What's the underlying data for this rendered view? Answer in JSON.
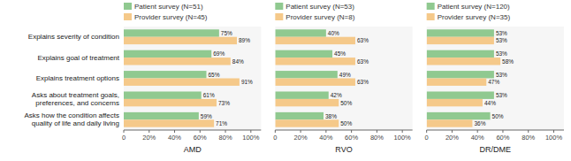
{
  "chart_data": [
    {
      "type": "bar",
      "orientation": "horizontal",
      "x_label": "AMD",
      "categories": [
        "Explains severity of condition",
        "Explains goal of treatment",
        "Explains treatment options",
        "Asks about treatment goals,\npreferences, and concerns",
        "Asks how the condition affects\nquality of life and daily living"
      ],
      "series": [
        {
          "name": "Patient survey (N=51)",
          "color": "#90c990",
          "values": [
            75,
            69,
            65,
            61,
            59
          ],
          "value_labels": [
            "75%",
            "69%",
            "65%",
            "61%",
            "59%"
          ]
        },
        {
          "name": "Provider survey (N=45)",
          "color": "#f5c98a",
          "values": [
            89,
            84,
            91,
            73,
            71
          ],
          "value_labels": [
            "89%",
            "84%",
            "91%",
            "73%",
            "71%"
          ]
        }
      ],
      "xlim": [
        0,
        108
      ],
      "xticks": [
        0,
        {
          "value": 20,
          "label": "20%"
        },
        {
          "value": 40,
          "label": "40%"
        },
        {
          "value": 60,
          "label": "60%"
        },
        {
          "value": 80,
          "label": "80%"
        },
        {
          "value": 100,
          "label": "100%"
        }
      ],
      "data_labels": true,
      "legend": "top",
      "grid": false
    },
    {
      "type": "bar",
      "orientation": "horizontal",
      "x_label": "RVO",
      "categories": [
        null,
        null,
        null,
        null,
        null
      ],
      "series": [
        {
          "name": "Patient survey (N=53)",
          "color": "#90c990",
          "values": [
            40,
            45,
            49,
            42,
            38
          ],
          "value_labels": [
            "40%",
            "45%",
            "49%",
            "42%",
            "38%"
          ]
        },
        {
          "name": "Provider survey (N=8)",
          "color": "#f5c98a",
          "values": [
            63,
            63,
            63,
            50,
            50
          ],
          "value_labels": [
            "63%",
            "63%",
            "63%",
            "50%",
            "50%"
          ]
        }
      ],
      "xlim": [
        0,
        108
      ],
      "xticks": [
        0,
        {
          "value": 20,
          "label": "20%"
        },
        {
          "value": 40,
          "label": "40%"
        },
        {
          "value": 60,
          "label": "60%"
        },
        {
          "value": 80,
          "label": "80%"
        },
        {
          "value": 100,
          "label": "100%"
        }
      ],
      "data_labels": true,
      "legend": "top",
      "grid": false
    },
    {
      "type": "bar",
      "orientation": "horizontal",
      "x_label": "DR/DME",
      "categories": [
        null,
        null,
        null,
        null,
        null
      ],
      "series": [
        {
          "name": "Patient survey (N=120)",
          "color": "#90c990",
          "values": [
            53,
            53,
            53,
            53,
            50
          ],
          "value_labels": [
            "53%",
            "53%",
            "53%",
            "53%",
            "50%"
          ]
        },
        {
          "name": "Provider survey (N=35)",
          "color": "#f5c98a",
          "values": [
            53,
            58,
            47,
            44,
            36
          ],
          "value_labels": [
            "53%",
            "58%",
            "47%",
            "44%",
            "36%"
          ]
        }
      ],
      "xlim": [
        0,
        108
      ],
      "xticks": [
        0,
        {
          "value": 20,
          "label": "20%"
        },
        {
          "value": 40,
          "label": "40%"
        },
        {
          "value": 60,
          "label": "60%"
        },
        {
          "value": 80,
          "label": "80%"
        },
        {
          "value": 100,
          "label": "100%"
        }
      ],
      "data_labels": true,
      "legend": "top",
      "grid": false
    }
  ]
}
